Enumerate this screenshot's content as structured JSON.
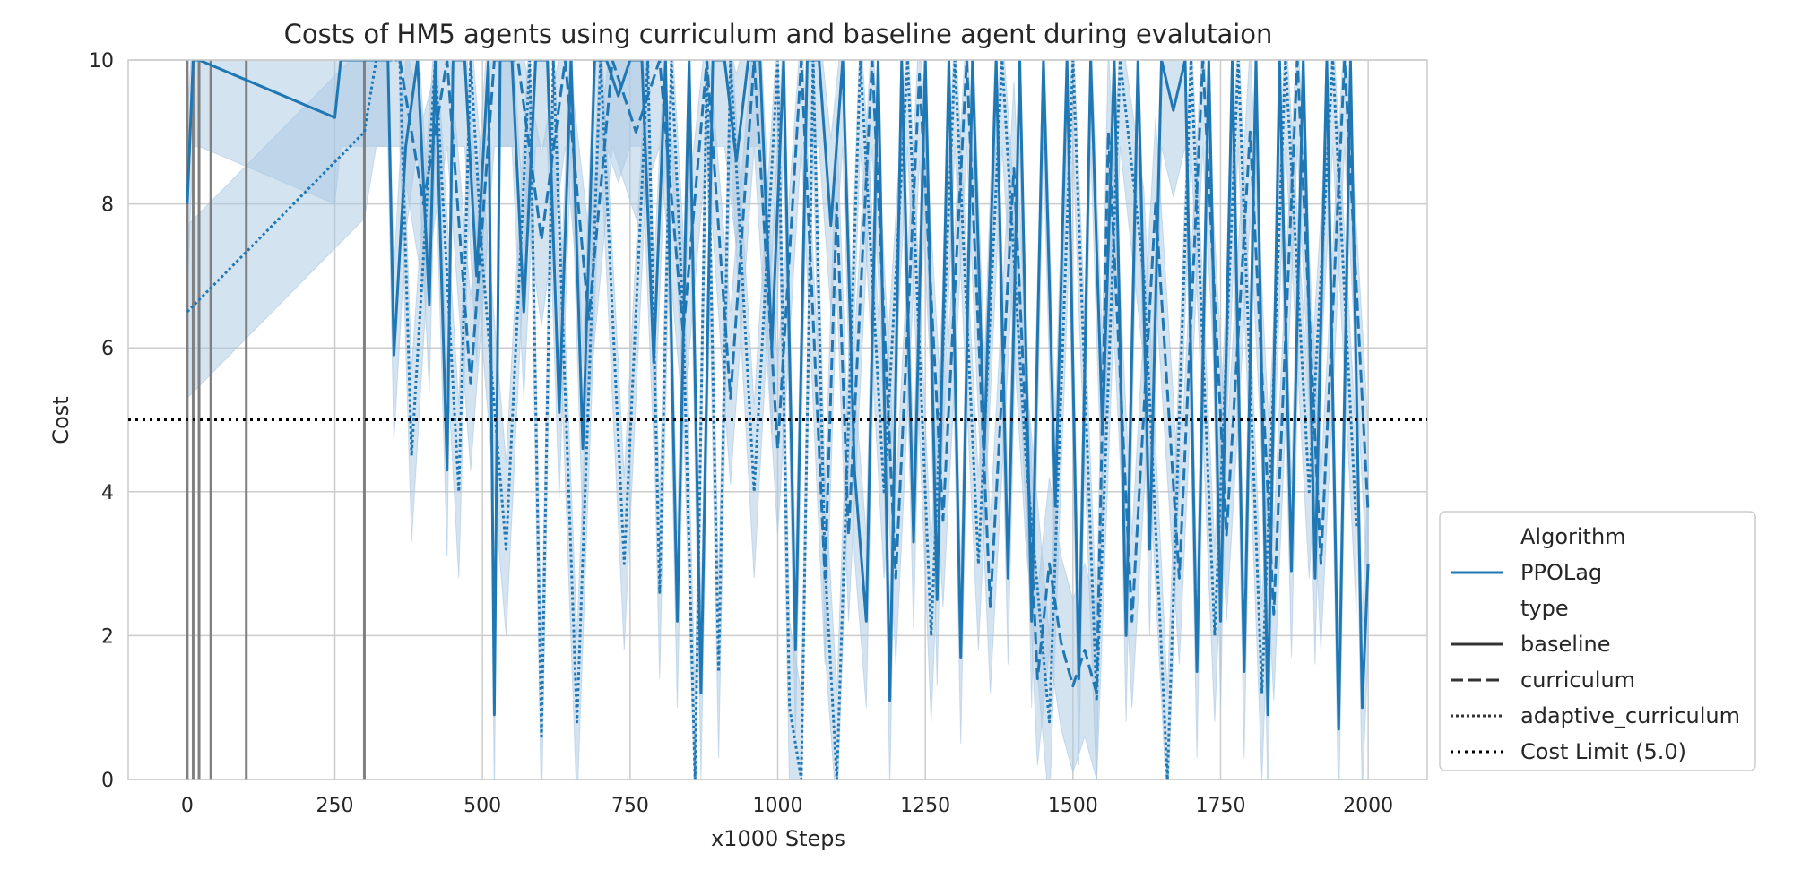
{
  "chart_data": {
    "type": "line",
    "title": "Costs of HM5 agents using curriculum and baseline agent during evalutaion",
    "xlabel": "x1000 Steps",
    "ylabel": "Cost",
    "xlim": [
      -100,
      2100
    ],
    "ylim": [
      0,
      10
    ],
    "xticks": [
      "0",
      "250",
      "500",
      "750",
      "1000",
      "1250",
      "1500",
      "1750",
      "2000"
    ],
    "yticks": [
      "0",
      "2",
      "4",
      "6",
      "8",
      "10"
    ],
    "grid": true,
    "legend_placement": "lower-right outside",
    "legend": {
      "groups": [
        {
          "title": "Algorithm",
          "entries": [
            {
              "label": "PPOLag",
              "style": "solid"
            }
          ]
        },
        {
          "title": "type",
          "entries": [
            {
              "label": "baseline",
              "style": "solid"
            },
            {
              "label": "curriculum",
              "style": "dashed"
            },
            {
              "label": "adaptive_curriculum",
              "style": "dotted"
            },
            {
              "label": "Cost Limit (5.0)",
              "style": "dotted-black"
            }
          ]
        }
      ]
    },
    "colors": {
      "series": "#1f77b4",
      "band": "#aac8e2",
      "limit": "#000000",
      "vlines": "#808080"
    },
    "cost_limit": 5.0,
    "vertical_lines_x": [
      0,
      10,
      20,
      40,
      100,
      300
    ],
    "series": [
      {
        "name": "baseline",
        "style": "solid",
        "x": [
          0,
          10,
          20,
          250,
          260,
          290,
          340,
          350,
          370,
          390,
          410,
          420,
          440,
          450,
          470,
          490,
          510,
          520,
          530,
          550,
          570,
          590,
          610,
          630,
          650,
          670,
          690,
          710,
          730,
          750,
          770,
          790,
          810,
          830,
          850,
          870,
          890,
          910,
          930,
          950,
          970,
          990,
          1010,
          1030,
          1050,
          1070,
          1090,
          1110,
          1130,
          1150,
          1170,
          1190,
          1210,
          1230,
          1250,
          1270,
          1290,
          1310,
          1330,
          1350,
          1370,
          1390,
          1410,
          1430,
          1450,
          1470,
          1490,
          1510,
          1530,
          1550,
          1570,
          1590,
          1610,
          1630,
          1650,
          1670,
          1690,
          1710,
          1730,
          1750,
          1770,
          1790,
          1810,
          1830,
          1850,
          1870,
          1890,
          1910,
          1930,
          1950,
          1970,
          1990,
          2000
        ],
        "y": [
          8.0,
          10,
          10,
          9.2,
          10,
          10,
          10,
          5.9,
          8.8,
          10,
          6.6,
          10,
          4.3,
          10,
          10,
          7.0,
          10,
          0.9,
          10,
          10,
          6.5,
          10,
          10,
          5.1,
          10,
          4.6,
          10,
          10,
          9.5,
          10,
          10,
          5.8,
          10,
          2.2,
          10,
          1.2,
          10,
          10,
          8.6,
          10,
          10,
          6.0,
          10,
          1.8,
          10,
          10,
          7.7,
          10,
          4.3,
          2.2,
          10,
          1.1,
          10,
          3.3,
          10,
          2.5,
          10,
          1.7,
          10,
          4.6,
          10,
          2.8,
          10,
          2.2,
          10,
          3.8,
          10,
          1.4,
          10,
          4.8,
          10,
          2.0,
          10,
          3.2,
          10,
          9.3,
          10,
          1.5,
          10,
          2.2,
          10,
          1.5,
          10,
          0.9,
          10,
          2.9,
          10,
          2.8,
          10,
          0.7,
          10,
          1.0,
          3.0
        ]
      },
      {
        "name": "curriculum",
        "style": "dashed",
        "x": [
          360,
          400,
          440,
          480,
          520,
          560,
          600,
          640,
          680,
          720,
          760,
          800,
          840,
          880,
          920,
          960,
          1000,
          1040,
          1080,
          1100,
          1120,
          1160,
          1200,
          1240,
          1280,
          1320,
          1360,
          1400,
          1440,
          1460,
          1480,
          1500,
          1520,
          1540,
          1560,
          1600,
          1640,
          1680,
          1720,
          1760,
          1800,
          1840,
          1880,
          1920,
          1960,
          2000
        ],
        "y": [
          10,
          8.0,
          10,
          5.5,
          10,
          10,
          7.5,
          10,
          6.4,
          10,
          9.0,
          10,
          6.2,
          10,
          5.3,
          10,
          4.6,
          10,
          2.8,
          8.0,
          3.4,
          10,
          2.8,
          9.8,
          3.6,
          10,
          2.4,
          8.5,
          1.4,
          3.0,
          1.9,
          1.3,
          1.8,
          1.2,
          9.0,
          2.2,
          8.0,
          2.8,
          10,
          3.4,
          9.0,
          2.3,
          10,
          3.0,
          10,
          3.7
        ]
      },
      {
        "name": "adaptive_curriculum",
        "style": "dotted",
        "x": [
          0,
          300,
          320,
          360,
          380,
          420,
          460,
          480,
          500,
          540,
          580,
          600,
          620,
          660,
          700,
          740,
          780,
          800,
          820,
          840,
          860,
          880,
          900,
          920,
          960,
          1000,
          1020,
          1040,
          1060,
          1080,
          1100,
          1140,
          1180,
          1220,
          1260,
          1300,
          1340,
          1380,
          1420,
          1460,
          1500,
          1540,
          1580,
          1620,
          1660,
          1700,
          1740,
          1780,
          1820,
          1860,
          1900,
          1940,
          1980
        ],
        "y": [
          6.5,
          9.0,
          10,
          10,
          4.5,
          10,
          4.0,
          10,
          7.2,
          3.2,
          10,
          0.6,
          10,
          0.8,
          10,
          3.0,
          10,
          2.6,
          10,
          6.4,
          0.0,
          10,
          1.5,
          10,
          4.0,
          10,
          1.0,
          0.0,
          10,
          3.0,
          0.0,
          10,
          4.0,
          10,
          2.0,
          10,
          3.0,
          10,
          4.5,
          0.8,
          10,
          1.1,
          10,
          7.0,
          0.0,
          10,
          2.0,
          10,
          1.2,
          10,
          4.0,
          10,
          3.5
        ]
      }
    ]
  }
}
